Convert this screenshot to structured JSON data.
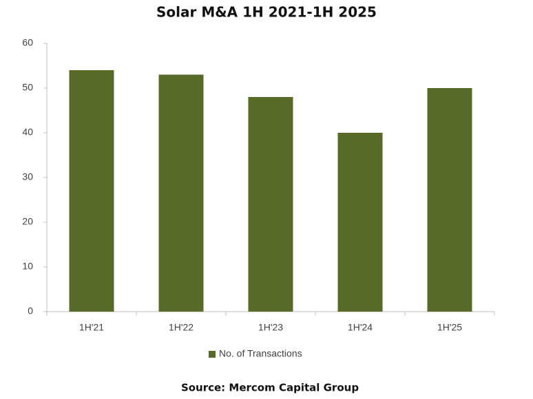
{
  "chart_data": {
    "type": "bar",
    "title": "Solar M&A 1H 2021-1H 2025",
    "categories": [
      "1H'21",
      "1H'22",
      "1H'23",
      "1H'24",
      "1H'25"
    ],
    "series": [
      {
        "name": "No. of Transactions",
        "color": "#586a28",
        "values": [
          54,
          53,
          48,
          40,
          50
        ]
      }
    ],
    "ylim": [
      0,
      60
    ],
    "yticks": [
      0,
      10,
      20,
      30,
      40,
      50,
      60
    ],
    "grid": false,
    "legend": "bottom",
    "source": "Source: Mercom Capital Group"
  }
}
